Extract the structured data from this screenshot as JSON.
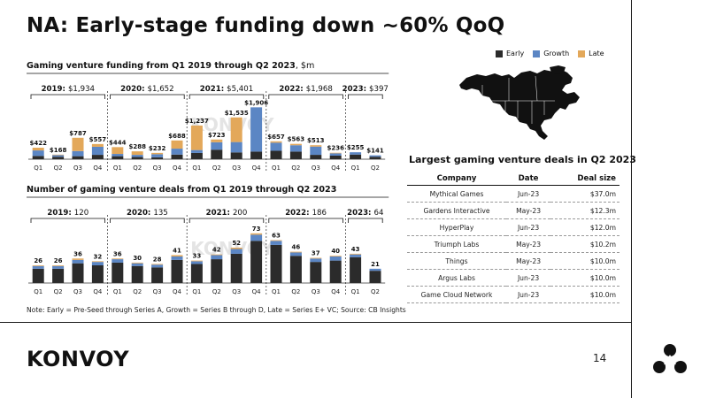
{
  "title": "NA: Early-stage funding down ~60% QoQ",
  "legend": [
    {
      "name": "Early",
      "color": "#2b2b2b"
    },
    {
      "name": "Growth",
      "color": "#5b86c4"
    },
    {
      "name": "Late",
      "color": "#e3a85a"
    }
  ],
  "chart_data": [
    {
      "type": "bar",
      "stacked": true,
      "title": "Gaming venture funding from Q1 2019 through Q2 2023",
      "title_unit": ", $m",
      "ylim": [
        0,
        1950
      ],
      "categories": [
        "Q1",
        "Q2",
        "Q3",
        "Q4",
        "Q1",
        "Q2",
        "Q3",
        "Q4",
        "Q1",
        "Q2",
        "Q3",
        "Q4",
        "Q1",
        "Q2",
        "Q3",
        "Q4",
        "Q1",
        "Q2"
      ],
      "groups": [
        {
          "label": "2019:",
          "value": "$1,934",
          "count": 4
        },
        {
          "label": "2020:",
          "value": "$1,652",
          "count": 4
        },
        {
          "label": "2021:",
          "value": "$5,401",
          "count": 4
        },
        {
          "label": "2022:",
          "value": "$1,968",
          "count": 4
        },
        {
          "label": "2023:",
          "value": "$397",
          "count": 2
        }
      ],
      "totals_labels": [
        "$422",
        "$168",
        "$787",
        "$557",
        "$444",
        "$288",
        "$232",
        "$688",
        "$1,237",
        "$723",
        "$1,535",
        "$1,906",
        "$657",
        "$563",
        "$513",
        "$236",
        "$255",
        "$141"
      ],
      "series": [
        {
          "name": "Early",
          "values": [
            120,
            90,
            110,
            160,
            110,
            80,
            70,
            170,
            230,
            350,
            250,
            280,
            310,
            280,
            160,
            130,
            170,
            90
          ]
        },
        {
          "name": "Growth",
          "values": [
            202,
            58,
            190,
            297,
            84,
            80,
            112,
            218,
            107,
            273,
            380,
            1626,
            297,
            233,
            303,
            86,
            85,
            51
          ]
        },
        {
          "name": "Late",
          "values": [
            100,
            20,
            487,
            100,
            250,
            128,
            50,
            300,
            900,
            100,
            905,
            0,
            50,
            50,
            50,
            20,
            0,
            0
          ]
        }
      ],
      "watermark": "KONVOY"
    },
    {
      "type": "bar",
      "stacked": true,
      "title": "Number of gaming venture deals from Q1 2019 through Q2 2023",
      "ylim": [
        0,
        78
      ],
      "categories": [
        "Q1",
        "Q2",
        "Q3",
        "Q4",
        "Q1",
        "Q2",
        "Q3",
        "Q4",
        "Q1",
        "Q2",
        "Q3",
        "Q4",
        "Q1",
        "Q2",
        "Q3",
        "Q4",
        "Q1",
        "Q2"
      ],
      "groups": [
        {
          "label": "2019:",
          "value": "120",
          "count": 4
        },
        {
          "label": "2020:",
          "value": "135",
          "count": 4
        },
        {
          "label": "2021:",
          "value": "200",
          "count": 4
        },
        {
          "label": "2022:",
          "value": "186",
          "count": 4
        },
        {
          "label": "2023:",
          "value": "64",
          "count": 2
        }
      ],
      "totals": [
        26,
        26,
        36,
        32,
        36,
        30,
        28,
        41,
        33,
        42,
        52,
        73,
        63,
        46,
        37,
        40,
        43,
        21
      ],
      "series": [
        {
          "name": "Early",
          "values": [
            21,
            21,
            29,
            26,
            30,
            25,
            23,
            34,
            28,
            35,
            43,
            62,
            56,
            40,
            31,
            33,
            38,
            18
          ]
        },
        {
          "name": "Growth",
          "values": [
            4,
            4,
            5,
            5,
            5,
            4,
            4,
            5,
            4,
            6,
            7,
            9,
            6,
            5,
            5,
            6,
            4,
            3
          ]
        },
        {
          "name": "Late",
          "values": [
            1,
            1,
            2,
            1,
            1,
            1,
            1,
            2,
            1,
            1,
            2,
            2,
            1,
            1,
            1,
            1,
            1,
            0
          ]
        }
      ],
      "watermark": "KONVOY"
    }
  ],
  "deals_table": {
    "title": "Largest gaming venture deals in Q2 2023",
    "headers": [
      "Company",
      "Date",
      "Deal size"
    ],
    "rows": [
      [
        "Mythical Games",
        "Jun-23",
        "$37.0m"
      ],
      [
        "Gardens Interactive",
        "May-23",
        "$12.3m"
      ],
      [
        "HyperPlay",
        "Jun-23",
        "$12.0m"
      ],
      [
        "Triumph Labs",
        "May-23",
        "$10.2m"
      ],
      [
        "Things",
        "May-23",
        "$10.0m"
      ],
      [
        "Argus Labs",
        "Jun-23",
        "$10.0m"
      ],
      [
        "Game Cloud Network",
        "Jun-23",
        "$10.0m"
      ]
    ]
  },
  "footnote": "Note: Early = Pre-Seed through Series A, Growth = Series B through D, Late = Series E+ VC; Source: CB Insights",
  "logo": "KONVOY",
  "page_number": "14"
}
